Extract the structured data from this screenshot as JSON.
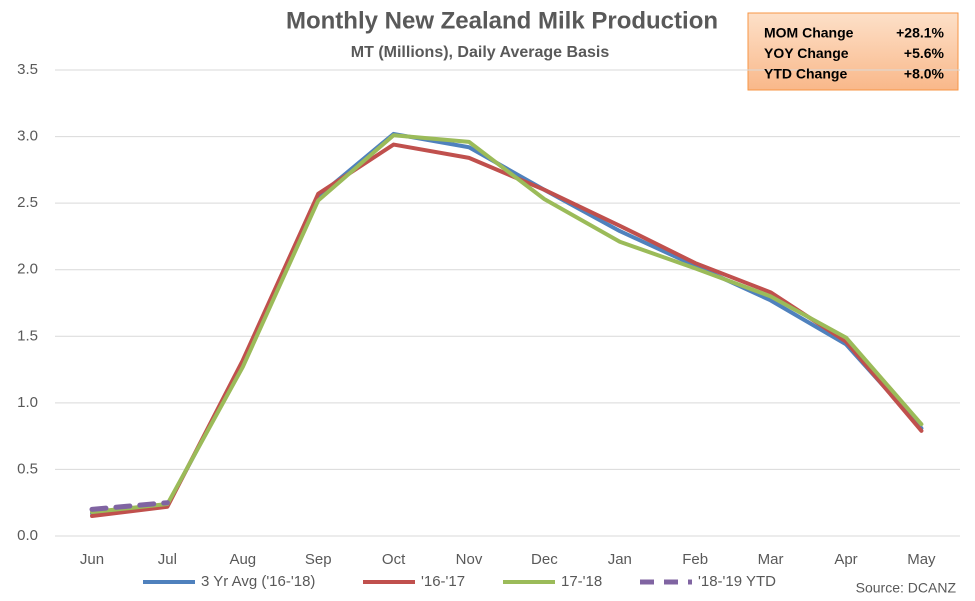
{
  "chart_data": {
    "type": "line",
    "title": "Monthly New Zealand Milk Production",
    "subtitle": "MT (Millions), Daily Average Basis",
    "source": "Source: DCANZ",
    "categories": [
      "Jun",
      "Jul",
      "Aug",
      "Sep",
      "Oct",
      "Nov",
      "Dec",
      "Jan",
      "Feb",
      "Mar",
      "Apr",
      "May"
    ],
    "series": [
      {
        "name": "3 Yr Avg ('16-'18)",
        "color": "#4f81bd",
        "values": [
          0.17,
          0.23,
          1.29,
          2.55,
          3.02,
          2.92,
          2.6,
          2.29,
          2.03,
          1.77,
          1.44,
          0.81
        ]
      },
      {
        "name": "'16-'17",
        "color": "#c0504d",
        "values": [
          0.15,
          0.22,
          1.32,
          2.57,
          2.94,
          2.84,
          2.6,
          2.33,
          2.05,
          1.83,
          1.46,
          0.79
        ]
      },
      {
        "name": "17-'18",
        "color": "#9bbb59",
        "values": [
          0.18,
          0.24,
          1.27,
          2.52,
          3.01,
          2.96,
          2.53,
          2.21,
          2.01,
          1.8,
          1.49,
          0.84
        ]
      },
      {
        "name": "'18-'19 YTD",
        "color": "#8064a2",
        "dashed": true,
        "values": [
          0.2,
          0.25,
          null,
          null,
          null,
          null,
          null,
          null,
          null,
          null,
          null,
          null
        ]
      }
    ],
    "ylim": [
      0,
      3.5
    ],
    "yticks": [
      {
        "value": 0,
        "label": "0.0"
      },
      0.5,
      {
        "value": 1,
        "label": "1.0"
      },
      1.5,
      {
        "value": 2,
        "label": "2.0"
      },
      2.5,
      {
        "value": 3,
        "label": "3.0"
      },
      3.5
    ],
    "grid": true,
    "legend": "bottom",
    "annotations": [
      {
        "label": "MOM Change",
        "value": "+28.1%"
      },
      {
        "label": "YOY Change",
        "value": "+5.6%"
      },
      {
        "label": "YTD Change",
        "value": "+8.0%"
      }
    ]
  }
}
